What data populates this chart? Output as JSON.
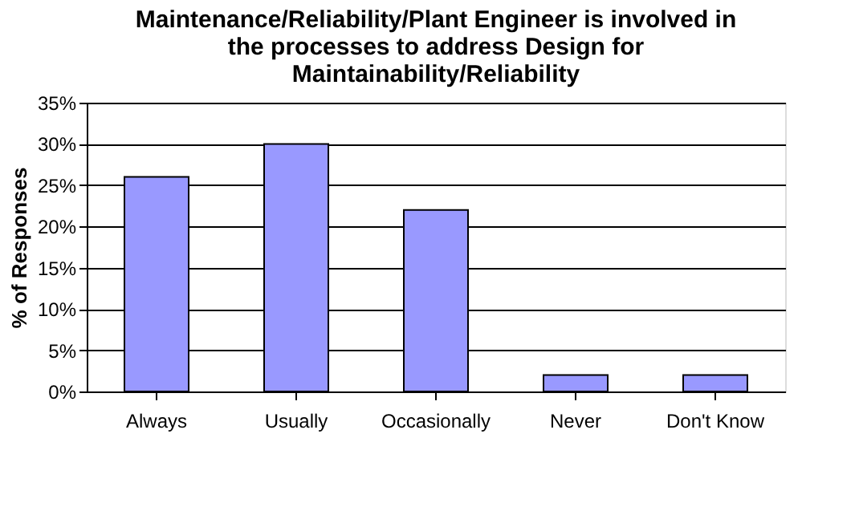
{
  "chart_data": {
    "type": "bar",
    "title": [
      "Maintenance/Reliability/Plant Engineer is involved in",
      "the processes to address Design for",
      "Maintainability/Reliability"
    ],
    "ylabel": "% of Responses",
    "categories": [
      "Always",
      "Usually",
      "Occasionally",
      "Never",
      "Don't Know"
    ],
    "values": [
      26,
      30,
      22,
      2,
      2
    ],
    "color": "#9999ff",
    "ylim": [
      0,
      35
    ],
    "yticks": [
      {
        "value": 0,
        "label": "0%"
      },
      {
        "value": 5,
        "label": "5%"
      },
      {
        "value": 10,
        "label": "10%"
      },
      {
        "value": 15,
        "label": "15%"
      },
      {
        "value": 20,
        "label": "20%"
      },
      {
        "value": 25,
        "label": "25%"
      },
      {
        "value": 30,
        "label": "30%"
      },
      {
        "value": 35,
        "label": "35%"
      }
    ],
    "grid": "y"
  }
}
